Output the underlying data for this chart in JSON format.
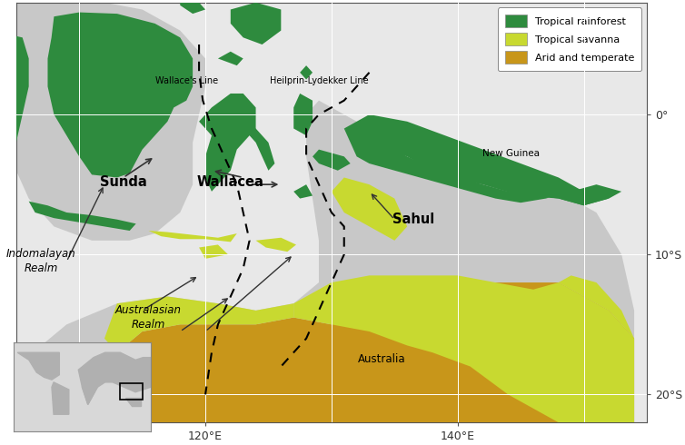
{
  "figsize": [
    7.54,
    4.9
  ],
  "dpi": 100,
  "xlim": [
    105,
    155
  ],
  "ylim": [
    -22,
    8
  ],
  "xticks": [
    120,
    140
  ],
  "yticks": [
    0,
    -10,
    -20
  ],
  "xtick_labels": [
    "120°E",
    "140°E"
  ],
  "ytick_labels": [
    "0°",
    "10°S",
    "20°S"
  ],
  "bg_ocean_color": "#e8e8e8",
  "shelf_color": "#c8c8c8",
  "rainforest_color": "#2e8b3e",
  "savanna_color": "#c8d930",
  "arid_color": "#c8961a",
  "grid_color": "#ffffff",
  "grid_lw": 0.7,
  "legend_items": [
    {
      "label": "Tropical rainforest",
      "color": "#2e8b3e"
    },
    {
      "label": "Tropical savanna",
      "color": "#c8d930"
    },
    {
      "label": "Arid and temperate",
      "color": "#c8961a"
    }
  ]
}
